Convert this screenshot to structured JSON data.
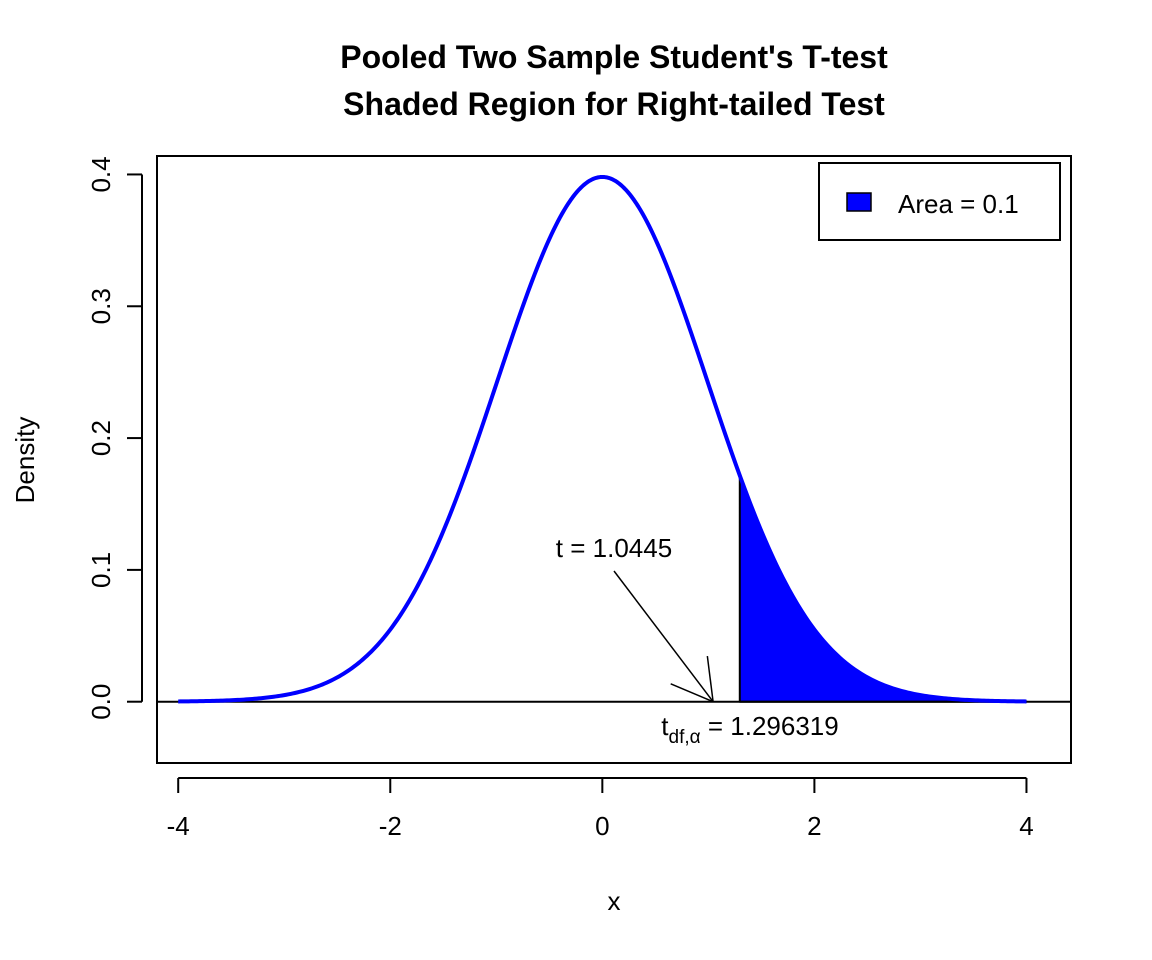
{
  "chart_data": {
    "type": "area",
    "title": "Pooled Two Sample Student's T-test",
    "subtitle": "Shaded Region for Right-tailed Test",
    "xlabel": "x",
    "ylabel": "Density",
    "xlim": [
      -4.2,
      4.42
    ],
    "ylim": [
      -0.0465,
      0.414
    ],
    "x_ticks": [
      -4,
      -2,
      0,
      2,
      4
    ],
    "x_tick_labels": [
      "-4",
      "-2",
      "0",
      "2",
      "4"
    ],
    "y_ticks": [
      0.0,
      0.1,
      0.2,
      0.3,
      0.4
    ],
    "y_tick_labels": [
      "0.0",
      "0.1",
      "0.2",
      "0.3",
      "0.4"
    ],
    "curve": {
      "distribution": "t",
      "x_range": [
        -4,
        4
      ],
      "peak_density": 0.398,
      "color": "#0000ff",
      "x": [
        -4,
        -3.5,
        -3,
        -2.5,
        -2,
        -1.5,
        -1,
        -0.5,
        0,
        0.5,
        1,
        1.296319,
        1.5,
        2,
        2.5,
        3,
        3.5,
        4
      ],
      "y": [
        0.0001,
        0.0009,
        0.0044,
        0.0175,
        0.054,
        0.1295,
        0.242,
        0.352,
        0.398,
        0.352,
        0.242,
        0.172,
        0.1295,
        0.054,
        0.0175,
        0.0044,
        0.0009,
        0.0001
      ]
    },
    "shaded_region": {
      "from": 1.296319,
      "to": 4,
      "area": 0.1,
      "fill": "#0000ff"
    },
    "legend": {
      "position": "top-right",
      "entries": [
        {
          "label": "Area = 0.1",
          "color": "#0000ff"
        }
      ]
    },
    "annotations": {
      "t_stat": {
        "label": "t = 1.0445",
        "value": 1.0445
      },
      "critical": {
        "base": "t",
        "subscript": "df,α",
        "rest": " = 1.296319",
        "value": 1.296319
      }
    },
    "baseline_y": 0
  }
}
